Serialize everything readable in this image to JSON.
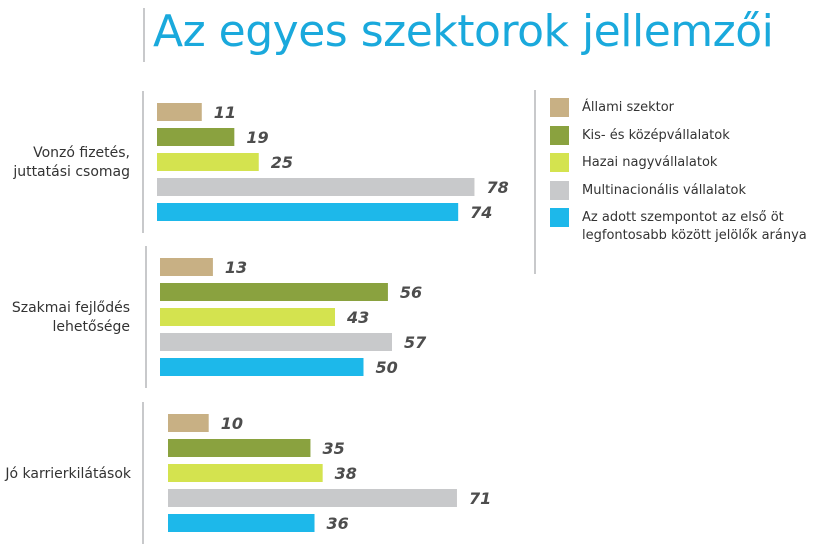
{
  "title": "Az egyes szektorok jellemzői",
  "chart_data": {
    "type": "bar",
    "orientation": "horizontal",
    "categories": [
      [
        "Vonzó fizetés,",
        "juttatási csomag"
      ],
      [
        "Szakmai fejlődés",
        "lehetősége"
      ],
      [
        "Jó karrierkilátások"
      ]
    ],
    "series": [
      {
        "name": "Állami szektor",
        "color": "#c8b084",
        "values": [
          11,
          13,
          10
        ]
      },
      {
        "name": "Kis- és középvállalatok",
        "color": "#8aa23f",
        "values": [
          19,
          56,
          35
        ]
      },
      {
        "name": "Hazai nagyvállalatok",
        "color": "#d4e34f",
        "values": [
          25,
          43,
          38
        ]
      },
      {
        "name": "Multinacionális vállalatok",
        "color": "#c8c9cb",
        "values": [
          78,
          57,
          71
        ]
      },
      {
        "name": "Az adott szempontot az első öt legfontosabb között jelölők aránya",
        "color": "#1db8ea",
        "values": [
          74,
          50,
          36
        ]
      }
    ],
    "legend_position": "right",
    "grid": false
  },
  "legend": [
    {
      "lines": [
        "Állami szektor"
      ]
    },
    {
      "lines": [
        "Kis- és középvállalatok"
      ]
    },
    {
      "lines": [
        "Hazai nagyvállalatok"
      ]
    },
    {
      "lines": [
        "Multinacionális vállalatok"
      ]
    },
    {
      "lines": [
        "Az adott szempontot az első öt",
        "legfontosabb között jelölők aránya"
      ]
    }
  ]
}
